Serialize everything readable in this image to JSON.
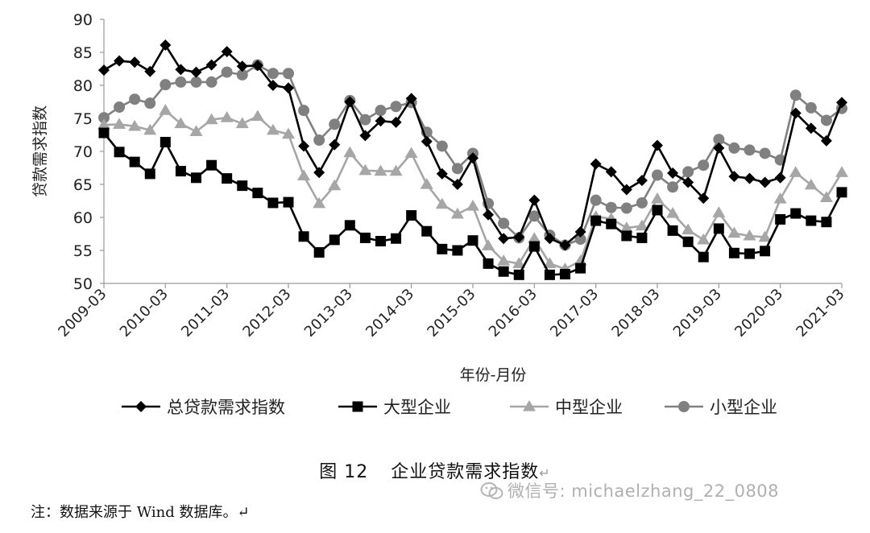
{
  "chart_data": {
    "type": "line",
    "title": "",
    "xlabel": "年份-月份",
    "ylabel": "贷款需求指数",
    "ylim": [
      50,
      90
    ],
    "yticks": [
      50,
      55,
      60,
      65,
      70,
      75,
      80,
      85,
      90
    ],
    "xtick_labels": [
      "2009-03",
      "2010-03",
      "2011-03",
      "2012-03",
      "2013-03",
      "2014-03",
      "2015-03",
      "2016-03",
      "2017-03",
      "2018-03",
      "2019-03",
      "2020-03",
      "2021-03"
    ],
    "grid": false,
    "legend_position": "bottom",
    "series": [
      {
        "name": "总贷款需求指数",
        "marker": "diamond",
        "color": "#000000",
        "values": [
          82.3,
          83.7,
          83.5,
          82.1,
          86.1,
          82.4,
          82.0,
          83.1,
          85.1,
          82.9,
          83.0,
          80.0,
          79.6,
          70.8,
          66.8,
          71.0,
          77.5,
          72.4,
          74.6,
          74.4,
          78.0,
          71.5,
          66.6,
          65.0,
          69.0,
          60.4,
          56.8,
          57.0,
          62.6,
          56.8,
          55.8,
          57.8,
          68.1,
          66.9,
          64.2,
          65.6,
          70.9,
          66.7,
          65.3,
          62.9,
          70.5,
          66.2,
          65.9,
          65.3,
          66.0,
          75.8,
          73.5,
          71.6,
          77.4
        ]
      },
      {
        "name": "大型企业",
        "marker": "square",
        "color": "#000000",
        "values": [
          72.8,
          69.9,
          68.4,
          66.6,
          71.4,
          67.0,
          66.0,
          67.9,
          65.9,
          64.8,
          63.7,
          62.2,
          62.3,
          57.1,
          54.7,
          56.6,
          58.8,
          56.9,
          56.4,
          56.8,
          60.3,
          57.9,
          55.2,
          55.0,
          56.5,
          53.0,
          51.8,
          51.3,
          55.6,
          51.3,
          51.4,
          52.3,
          59.5,
          59.0,
          57.2,
          56.9,
          61.1,
          58.0,
          56.3,
          54.0,
          58.3,
          54.6,
          54.5,
          54.9,
          59.7,
          60.6,
          59.5,
          59.3,
          63.8
        ]
      },
      {
        "name": "中型企业",
        "marker": "triangle",
        "color": "#a6a6a6",
        "values": [
          74.0,
          74.1,
          73.8,
          73.2,
          76.2,
          74.2,
          73.0,
          74.8,
          75.1,
          74.2,
          75.3,
          73.2,
          72.6,
          66.3,
          62.1,
          64.8,
          69.8,
          67.1,
          67.0,
          67.0,
          69.7,
          65.0,
          62.0,
          60.5,
          61.7,
          55.7,
          53.4,
          53.0,
          56.8,
          53.0,
          52.2,
          53.4,
          60.1,
          59.8,
          58.4,
          58.7,
          62.8,
          60.6,
          58.1,
          56.6,
          60.7,
          57.6,
          57.2,
          57.0,
          62.8,
          66.8,
          64.9,
          63.0,
          66.8
        ]
      },
      {
        "name": "小型企业",
        "marker": "circle",
        "color": "#808080",
        "values": [
          75.1,
          76.7,
          77.9,
          77.3,
          80.1,
          80.5,
          80.5,
          80.5,
          82.0,
          81.6,
          83.1,
          81.8,
          81.8,
          76.2,
          71.7,
          74.1,
          77.7,
          74.8,
          76.2,
          76.8,
          77.4,
          72.9,
          70.8,
          67.4,
          69.7,
          62.1,
          59.1,
          56.9,
          60.2,
          57.3,
          55.8,
          56.7,
          62.6,
          61.5,
          61.4,
          62.2,
          66.4,
          64.6,
          66.9,
          67.9,
          71.8,
          70.5,
          70.2,
          69.7,
          68.7,
          78.5,
          76.6,
          74.7,
          76.5
        ]
      }
    ]
  },
  "figure": {
    "caption_number": "图 12",
    "caption_text": "企业贷款需求指数",
    "caption_mark": "↵",
    "note": "注：数据来源于 Wind 数据库。↵",
    "watermark": "微信号: michaelzhang_22_0808"
  }
}
